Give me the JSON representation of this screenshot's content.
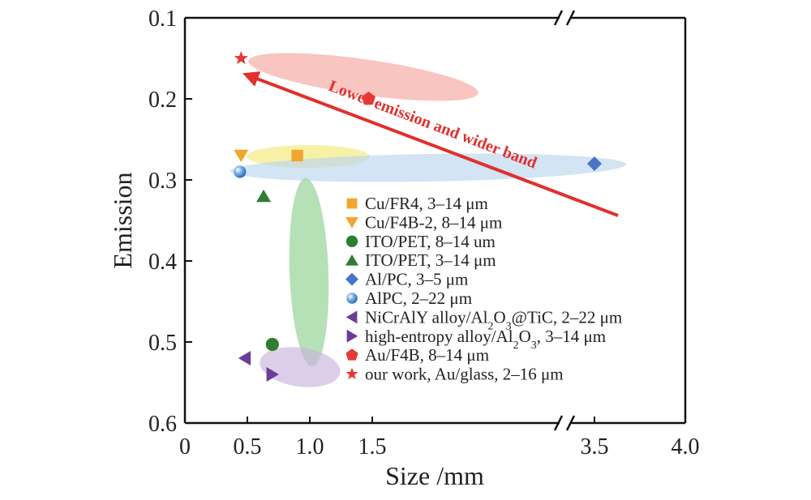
{
  "chart_data": {
    "type": "scatter",
    "title": "",
    "xlabel": "Size /mm",
    "ylabel": "Emission",
    "x_tick_labels": [
      "0",
      "0.5",
      "1.0",
      "1.5",
      "3.5",
      "4.0"
    ],
    "y_tick_labels": [
      "0.1",
      "0.2",
      "0.3",
      "0.4",
      "0.5",
      "0.6"
    ],
    "ylim": [
      0.1,
      0.6
    ],
    "y_inverted": true,
    "x_axis_break": "between 1.5 and 3.5",
    "grid": false,
    "legend_position": "center",
    "annotation": "Lower emission and wider band",
    "series": [
      {
        "name": "Cu/FR4, 3–14 μm",
        "marker": "square",
        "color": "#f0a630",
        "points": [
          {
            "x": 0.9,
            "y": 0.27
          }
        ]
      },
      {
        "name": "Cu/F4B-2, 8–14 μm",
        "marker": "triangle-down",
        "color": "#f0a630",
        "points": [
          {
            "x": 0.45,
            "y": 0.27
          }
        ]
      },
      {
        "name": "ITO/PET, 8–14 um",
        "marker": "circle",
        "color": "#2e7d32",
        "points": [
          {
            "x": 0.7,
            "y": 0.503
          }
        ]
      },
      {
        "name": "ITO/PET, 3–14 μm",
        "marker": "triangle-up",
        "color": "#2e7d32",
        "points": [
          {
            "x": 0.63,
            "y": 0.32
          }
        ]
      },
      {
        "name": "Al/PC, 3–5 μm",
        "marker": "diamond",
        "color": "#4a74c4",
        "points": [
          {
            "x": 3.5,
            "y": 0.28
          }
        ]
      },
      {
        "name": "AlPC, 2–22 μm",
        "marker": "sphere",
        "color": "#4a90d9",
        "points": [
          {
            "x": 0.44,
            "y": 0.29
          }
        ]
      },
      {
        "name": "NiCrAlY alloy/Al₂O₃@TiC, 2–22 μm",
        "marker": "triangle-left",
        "color": "#6a3d9a",
        "points": [
          {
            "x": 0.48,
            "y": 0.52
          }
        ]
      },
      {
        "name": "high-entropy alloy/Al₂O₃, 3–14 μm",
        "marker": "triangle-right",
        "color": "#6a3d9a",
        "points": [
          {
            "x": 0.7,
            "y": 0.54
          }
        ]
      },
      {
        "name": "Au/F4B, 8–14 μm",
        "marker": "pentagon",
        "color": "#e53935",
        "points": [
          {
            "x": 1.47,
            "y": 0.2
          }
        ]
      },
      {
        "name": "our work, Au/glass, 2–16 μm",
        "marker": "star",
        "color": "#e53935",
        "points": [
          {
            "x": 0.45,
            "y": 0.15
          }
        ]
      }
    ],
    "regions": [
      {
        "name": "red-region",
        "color": "#f4a6a0"
      },
      {
        "name": "yellow-region",
        "color": "#f2ea7a"
      },
      {
        "name": "blue-region",
        "color": "#bcd6ee"
      },
      {
        "name": "green-region",
        "color": "#8fd08f"
      },
      {
        "name": "purple-region",
        "color": "#c9b4dc"
      }
    ],
    "legend_labels": [
      {
        "pre": "Cu/FR4, 3–14 μm"
      },
      {
        "pre": "Cu/F4B-2, 8–14 μm"
      },
      {
        "pre": "ITO/PET, 8–14 um"
      },
      {
        "pre": "ITO/PET, 3–14 μm"
      },
      {
        "pre": "Al/PC, 3–5 μm"
      },
      {
        "pre": "AlPC, 2–22 μm"
      },
      {
        "pre": "NiCrAlY alloy/Al",
        "sub1": "2",
        "mid": "O",
        "sub2": "3",
        "post": "@TiC, 2–22 μm"
      },
      {
        "pre": "high-entropy alloy/Al",
        "sub1": "2",
        "mid": "O",
        "sub2": "3",
        "post": ", 3–14 μm"
      },
      {
        "pre": "Au/F4B, 8–14 μm"
      },
      {
        "pre": "our work, Au/glass, 2–16 μm"
      }
    ]
  }
}
